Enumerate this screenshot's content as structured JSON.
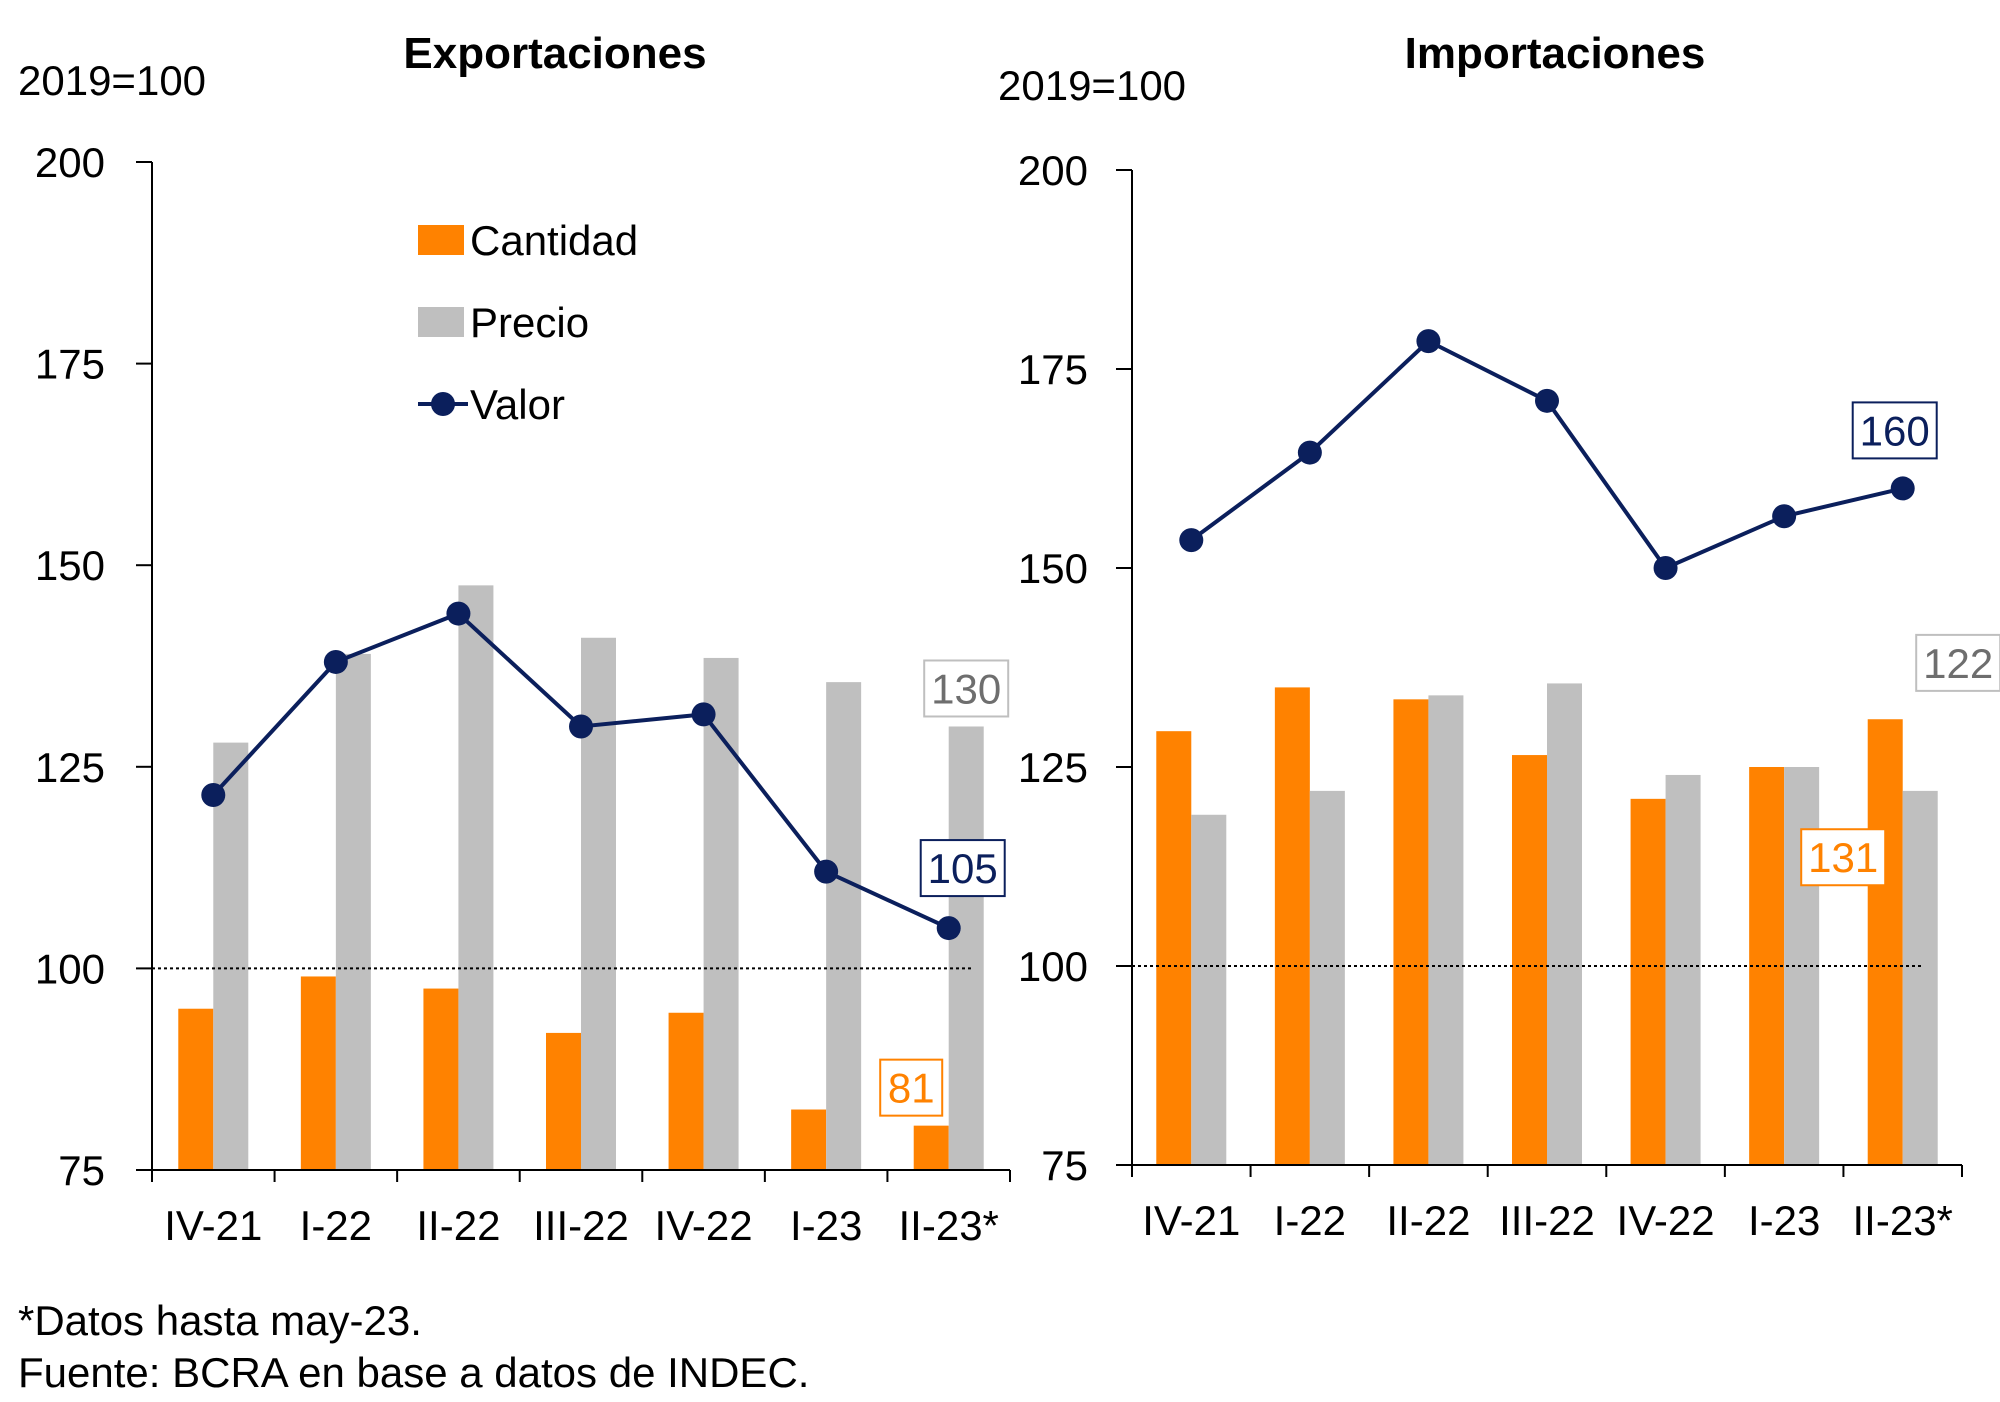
{
  "footnotes": {
    "note": "*Datos hasta may-23.",
    "source": "Fuente: BCRA en base a datos de INDEC."
  },
  "colors": {
    "cantidad": "#FF8200",
    "precio": "#BFBFBF",
    "valor": "#0B1F5C",
    "precio_label": "#6E6E6E"
  },
  "chart_data": [
    {
      "type": "bar",
      "title": "Exportaciones",
      "unit_label": "2019=100",
      "categories": [
        "IV-21",
        "I-22",
        "II-22",
        "III-22",
        "IV-22",
        "I-23",
        "II-23*"
      ],
      "ylim": [
        75,
        200
      ],
      "yticks": [
        "75",
        "100",
        "125",
        "150",
        "175",
        "200"
      ],
      "reference_line": 100,
      "legend": [
        "Cantidad",
        "Precio",
        "Valor"
      ],
      "series": [
        {
          "name": "Cantidad",
          "type": "bar",
          "values": [
            95,
            99,
            97.5,
            92,
            94.5,
            82.5,
            80.5
          ]
        },
        {
          "name": "Precio",
          "type": "bar",
          "values": [
            128,
            139,
            147.5,
            141,
            138.5,
            135.5,
            130
          ]
        },
        {
          "name": "Valor",
          "type": "line",
          "values": [
            121.5,
            138,
            144,
            130,
            131.5,
            112,
            105
          ]
        }
      ],
      "data_labels": [
        {
          "series": "Precio",
          "text": "130"
        },
        {
          "series": "Valor",
          "text": "105"
        },
        {
          "series": "Cantidad",
          "text": "81"
        }
      ]
    },
    {
      "type": "bar",
      "title": "Importaciones",
      "unit_label": "2019=100",
      "categories": [
        "IV-21",
        "I-22",
        "II-22",
        "III-22",
        "IV-22",
        "I-23",
        "II-23*"
      ],
      "ylim": [
        75,
        200
      ],
      "yticks": [
        "75",
        "100",
        "125",
        "150",
        "175",
        "200"
      ],
      "reference_line": 100,
      "series": [
        {
          "name": "Cantidad",
          "type": "bar",
          "values": [
            129.5,
            135,
            133.5,
            126.5,
            121,
            125,
            131
          ]
        },
        {
          "name": "Precio",
          "type": "bar",
          "values": [
            119,
            122,
            134,
            135.5,
            124,
            125,
            122
          ]
        },
        {
          "name": "Valor",
          "type": "line",
          "values": [
            153.5,
            164.5,
            178.5,
            171,
            150,
            156.5,
            160
          ]
        }
      ],
      "data_labels": [
        {
          "series": "Valor",
          "text": "160"
        },
        {
          "series": "Precio",
          "text": "122"
        },
        {
          "series": "Cantidad",
          "text": "131"
        }
      ]
    }
  ]
}
